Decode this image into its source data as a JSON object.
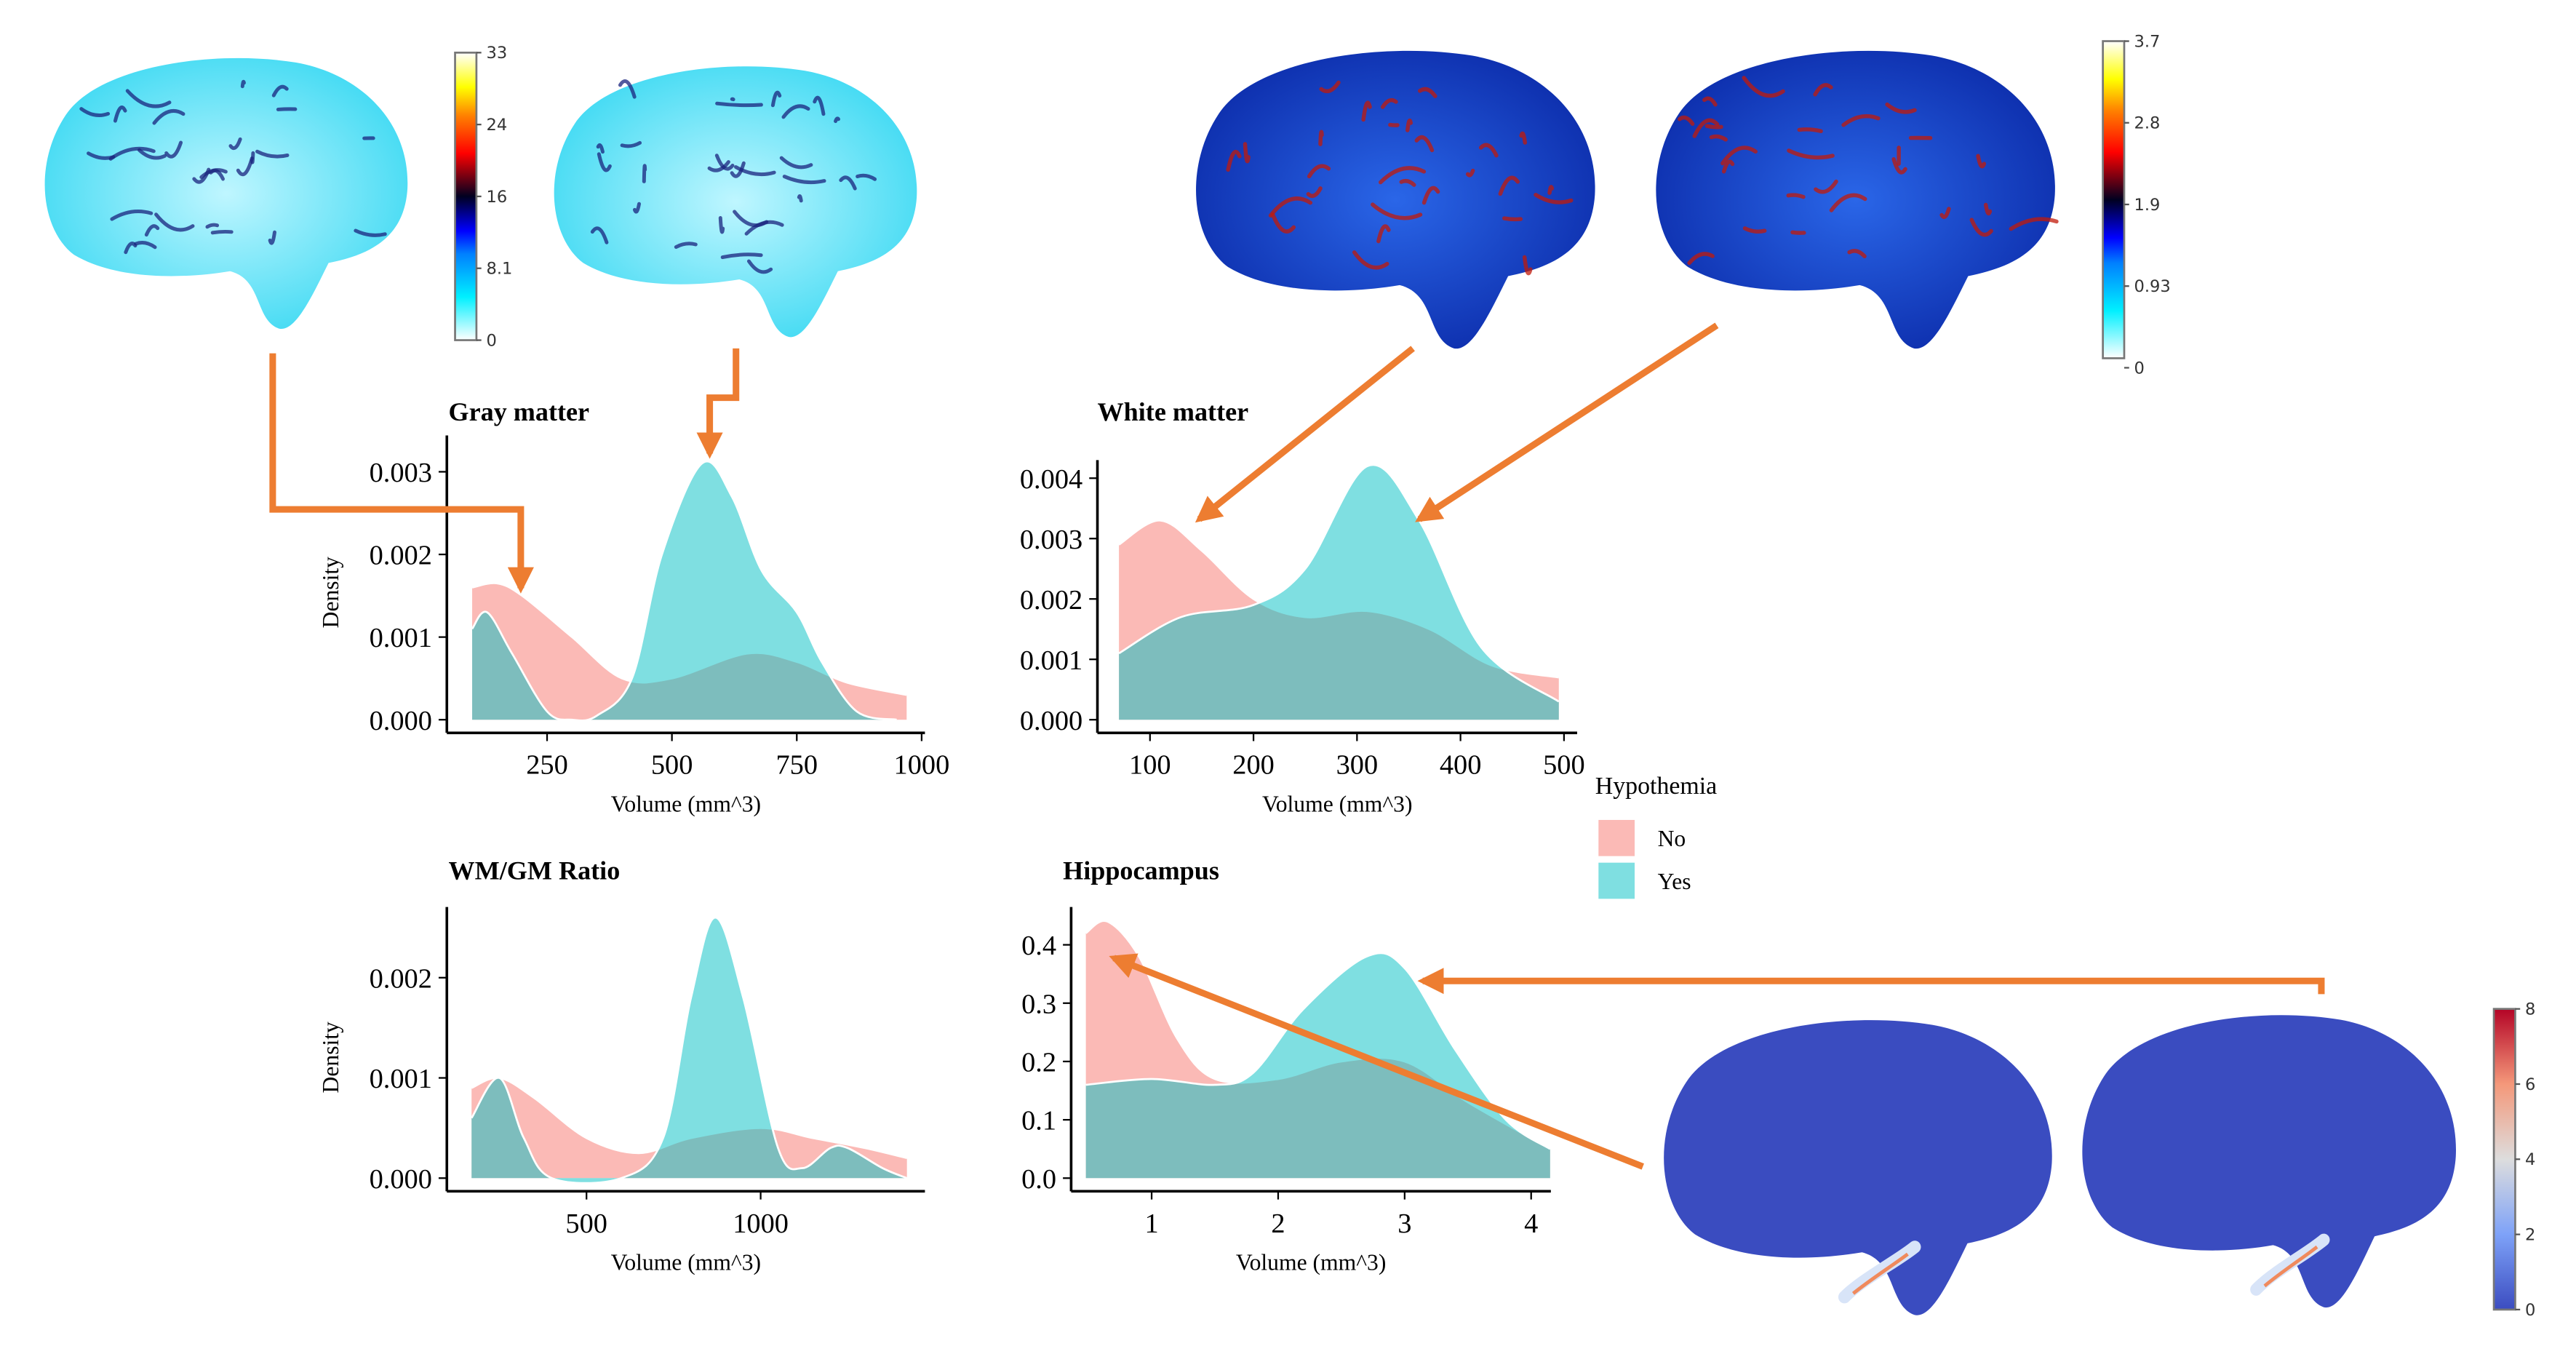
{
  "legend": {
    "title": "Hypothemia",
    "items": [
      {
        "label": "No",
        "color": "#F8766D"
      },
      {
        "label": "Yes",
        "color": "#00BFC4"
      }
    ]
  },
  "arrow_color": "#ED7D31",
  "colorbars": {
    "gray_matter": {
      "ticks": [
        "33",
        "24",
        "16",
        "8.1",
        "0"
      ]
    },
    "white_matter": {
      "ticks": [
        "3.7",
        "2.8",
        "1.9",
        "0.93",
        "0"
      ]
    },
    "hippocampus": {
      "ticks": [
        "8",
        "6",
        "4",
        "2",
        "0"
      ]
    }
  },
  "chart_data": [
    {
      "type": "area",
      "title": "Gray matter",
      "xlabel": "Volume (mm^3)",
      "ylabel": "Density",
      "xlim": [
        50,
        1010
      ],
      "ylim": [
        0,
        0.0032
      ],
      "xticks": [
        250,
        500,
        750,
        1000
      ],
      "xtick_labels": [
        "250",
        "500",
        "750",
        "1000"
      ],
      "yticks": [
        0,
        0.001,
        0.002,
        0.003
      ],
      "ytick_labels": [
        "0.000",
        "0.001",
        "0.002",
        "0.003"
      ],
      "series": [
        {
          "name": "No",
          "x": [
            100,
            150,
            200,
            300,
            400,
            500,
            650,
            750,
            850,
            970
          ],
          "y": [
            0.0016,
            0.00165,
            0.0015,
            0.001,
            0.0005,
            0.0005,
            0.0008,
            0.0007,
            0.00045,
            0.0003
          ]
        },
        {
          "name": "Yes",
          "x": [
            100,
            130,
            180,
            250,
            300,
            350,
            420,
            480,
            560,
            620,
            680,
            750,
            800,
            870,
            950
          ],
          "y": [
            0.0011,
            0.0013,
            0.0008,
            0.0001,
            0,
            5e-05,
            0.0005,
            0.002,
            0.0031,
            0.0027,
            0.0018,
            0.0013,
            0.0007,
            0.0001,
            0
          ]
        }
      ]
    },
    {
      "type": "area",
      "title": "White matter",
      "xlabel": "Volume (mm^3)",
      "ylabel": "",
      "xlim": [
        50,
        515
      ],
      "ylim": [
        0,
        0.0043
      ],
      "xticks": [
        100,
        200,
        300,
        400,
        500
      ],
      "xtick_labels": [
        "100",
        "200",
        "300",
        "400",
        "500"
      ],
      "yticks": [
        0,
        0.001,
        0.002,
        0.003,
        0.004
      ],
      "ytick_labels": [
        "0.000",
        "0.001",
        "0.002",
        "0.003",
        "0.004"
      ],
      "series": [
        {
          "name": "No",
          "x": [
            70,
            110,
            150,
            200,
            250,
            310,
            370,
            430,
            495
          ],
          "y": [
            0.0029,
            0.0033,
            0.0028,
            0.002,
            0.0017,
            0.0018,
            0.0015,
            0.0009,
            0.0007
          ]
        },
        {
          "name": "Yes",
          "x": [
            70,
            130,
            200,
            250,
            310,
            360,
            420,
            495
          ],
          "y": [
            0.0011,
            0.0017,
            0.0019,
            0.0025,
            0.0042,
            0.0033,
            0.0012,
            0.0003
          ]
        }
      ]
    },
    {
      "type": "area",
      "title": "WM/GM Ratio",
      "xlabel": "Volume (mm^3)",
      "ylabel": "Density",
      "xlim": [
        100,
        1480
      ],
      "ylim": [
        0,
        0.0027
      ],
      "xticks": [
        500,
        1000
      ],
      "xtick_labels": [
        "500",
        "1000"
      ],
      "yticks": [
        0,
        0.001,
        0.002
      ],
      "ytick_labels": [
        "0.000",
        "0.001",
        "0.002"
      ],
      "series": [
        {
          "name": "No",
          "x": [
            170,
            250,
            350,
            500,
            650,
            800,
            1000,
            1150,
            1300,
            1420
          ],
          "y": [
            0.0009,
            0.001,
            0.0008,
            0.0004,
            0.00025,
            0.0004,
            0.0005,
            0.0004,
            0.0003,
            0.0002
          ]
        },
        {
          "name": "Yes",
          "x": [
            170,
            250,
            320,
            400,
            600,
            720,
            800,
            870,
            950,
            1050,
            1120,
            1200,
            1250,
            1350,
            1420
          ],
          "y": [
            0.0006,
            0.001,
            0.0004,
            0,
            0,
            0.0004,
            0.0018,
            0.0026,
            0.0018,
            0.0003,
            0.0001,
            0.0003,
            0.0003,
            0.0001,
            0
          ]
        }
      ]
    },
    {
      "type": "area",
      "title": "Hippocampus",
      "xlabel": "Volume (mm^3)",
      "ylabel": "",
      "xlim": [
        0.36,
        4.2
      ],
      "ylim": [
        0,
        0.46
      ],
      "xticks": [
        1,
        2,
        3,
        4
      ],
      "xtick_labels": [
        "1",
        "2",
        "3",
        "4"
      ],
      "yticks": [
        0,
        0.1,
        0.2,
        0.3,
        0.4
      ],
      "ytick_labels": [
        "0.0",
        "0.1",
        "0.2",
        "0.3",
        "0.4"
      ],
      "series": [
        {
          "name": "No",
          "x": [
            0.48,
            0.65,
            0.9,
            1.2,
            1.5,
            2.0,
            2.5,
            3.0,
            3.5,
            4.15
          ],
          "y": [
            0.42,
            0.44,
            0.38,
            0.24,
            0.17,
            0.17,
            0.2,
            0.2,
            0.13,
            0.05
          ]
        },
        {
          "name": "Yes",
          "x": [
            0.48,
            1.0,
            1.5,
            1.8,
            2.2,
            2.7,
            3.0,
            3.4,
            3.8,
            4.15
          ],
          "y": [
            0.16,
            0.17,
            0.16,
            0.18,
            0.29,
            0.38,
            0.36,
            0.22,
            0.1,
            0.05
          ]
        }
      ]
    }
  ]
}
